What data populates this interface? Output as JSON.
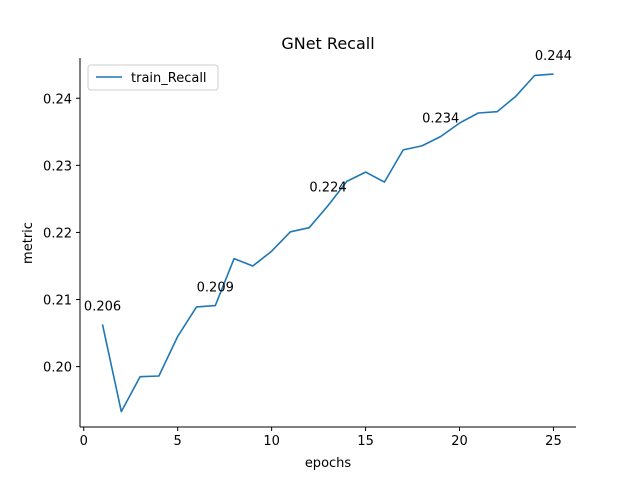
{
  "chart_data": {
    "type": "line",
    "title": "GNet Recall",
    "xlabel": "epochs",
    "ylabel": "metric",
    "xlim": [
      -0.2,
      26.2
    ],
    "ylim": [
      0.191,
      0.246
    ],
    "xticks": [
      0,
      5,
      10,
      15,
      20,
      25
    ],
    "yticks": [
      0.2,
      0.21,
      0.22,
      0.23,
      0.24
    ],
    "ytick_labels": [
      "0.20",
      "0.21",
      "0.22",
      "0.23",
      "0.24"
    ],
    "grid": false,
    "legend_position": "top-left",
    "series": [
      {
        "name": "train_Recall",
        "color": "#1f77b4",
        "x": [
          1,
          2,
          3,
          4,
          5,
          6,
          7,
          8,
          9,
          10,
          11,
          12,
          13,
          14,
          15,
          16,
          17,
          18,
          19,
          20,
          21,
          22,
          23,
          24,
          25
        ],
        "y": [
          0.2063,
          0.1933,
          0.1985,
          0.1986,
          0.2045,
          0.2089,
          0.2091,
          0.2161,
          0.215,
          0.2172,
          0.2201,
          0.2207,
          0.224,
          0.2276,
          0.229,
          0.2275,
          0.2323,
          0.2329,
          0.2343,
          0.2363,
          0.2378,
          0.238,
          0.2403,
          0.2434,
          0.2436
        ]
      }
    ],
    "annotations": [
      {
        "x": 1,
        "y": 0.2063,
        "text": "0.206"
      },
      {
        "x": 7,
        "y": 0.2091,
        "text": "0.209"
      },
      {
        "x": 13,
        "y": 0.224,
        "text": "0.224"
      },
      {
        "x": 19,
        "y": 0.2343,
        "text": "0.234"
      },
      {
        "x": 25,
        "y": 0.2436,
        "text": "0.244"
      }
    ]
  }
}
